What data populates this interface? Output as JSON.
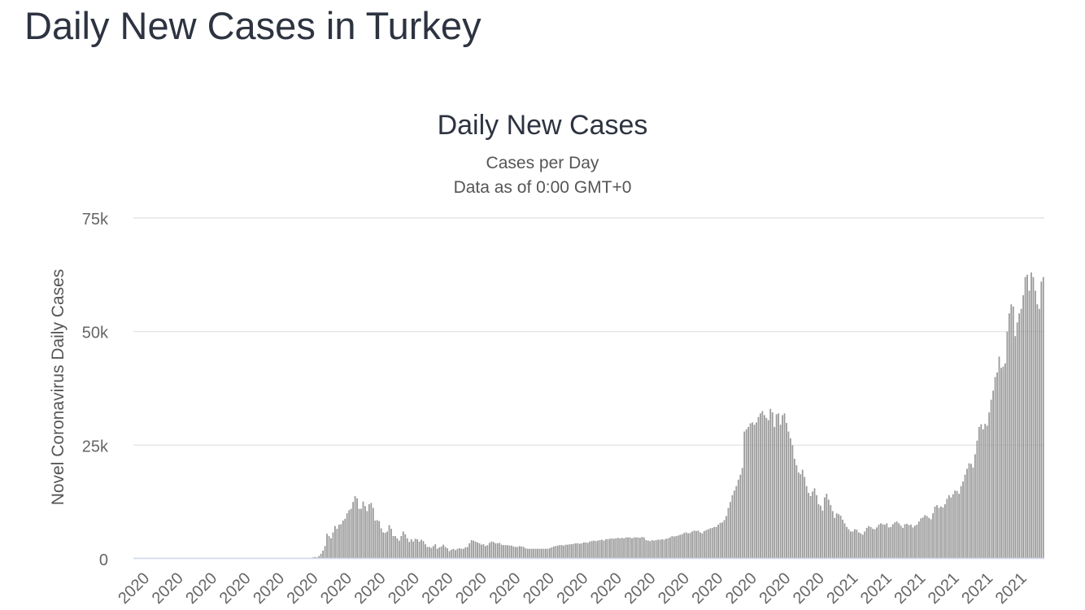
{
  "page": {
    "title": "Daily New Cases in Turkey"
  },
  "chart_data": {
    "type": "bar",
    "title": "Daily New Cases",
    "subtitle": [
      "Cases per Day",
      "Data as of 0:00 GMT+0"
    ],
    "xlabel": "",
    "ylabel": "Novel Coronavirus Daily Cases",
    "ylim": [
      0,
      75000
    ],
    "yticks": [
      {
        "value": 0,
        "label": "0"
      },
      {
        "value": 25000,
        "label": "25k"
      },
      {
        "value": 50000,
        "label": "50k"
      },
      {
        "value": 75000,
        "label": "75k"
      }
    ],
    "xtick_labels": [
      "2020",
      "2020",
      "2020",
      "2020",
      "2020",
      "2020",
      "2020",
      "2020",
      "2020",
      "2020",
      "2020",
      "2020",
      "2020",
      "2020",
      "2020",
      "2020",
      "2020",
      "2020",
      "2020",
      "2020",
      "2020",
      "2021",
      "2021",
      "2021",
      "2021",
      "2021",
      "2021"
    ],
    "grid": true,
    "legend": "none",
    "bar_color": "#999999",
    "values": [
      0,
      0,
      0,
      0,
      0,
      0,
      0,
      0,
      0,
      0,
      0,
      0,
      0,
      0,
      0,
      0,
      0,
      0,
      0,
      0,
      0,
      0,
      0,
      0,
      0,
      0,
      0,
      0,
      0,
      0,
      0,
      0,
      0,
      0,
      0,
      0,
      0,
      0,
      0,
      0,
      0,
      0,
      0,
      0,
      0,
      0,
      0,
      0,
      0,
      0,
      0,
      0,
      0,
      0,
      0,
      0,
      0,
      0,
      0,
      0,
      0,
      0,
      0,
      0,
      0,
      0,
      0,
      0,
      0,
      0,
      0,
      0,
      0,
      0,
      0,
      0,
      0,
      0,
      0,
      0,
      0,
      0,
      0,
      0,
      0,
      0,
      0,
      0,
      100,
      300,
      400,
      300,
      600,
      1100,
      1800,
      2800,
      5500,
      5000,
      4500,
      5800,
      7200,
      6600,
      7500,
      7600,
      8400,
      8800,
      10000,
      10700,
      11000,
      12500,
      13800,
      13300,
      11000,
      11000,
      12600,
      11600,
      10500,
      12000,
      12300,
      11200,
      8400,
      8500,
      8300,
      6700,
      5800,
      5700,
      6000,
      7400,
      6600,
      5000,
      5000,
      4500,
      4000,
      5000,
      6000,
      5400,
      4500,
      3700,
      4300,
      3800,
      4400,
      4300,
      3800,
      4200,
      3900,
      3200,
      2600,
      2600,
      2400,
      2800,
      3200,
      2200,
      2500,
      2700,
      3100,
      2600,
      2300,
      1700,
      2000,
      2200,
      1900,
      2200,
      2300,
      2200,
      2200,
      2500,
      2600,
      3400,
      4100,
      4000,
      3800,
      3600,
      3400,
      3100,
      3200,
      2800,
      3000,
      3500,
      3800,
      3700,
      3400,
      3400,
      3500,
      3100,
      3000,
      3000,
      3000,
      2900,
      2900,
      2700,
      2600,
      2600,
      2800,
      2700,
      2600,
      2300,
      2200,
      2200,
      2200,
      2200,
      2200,
      2200,
      2200,
      2200,
      2200,
      2200,
      2200,
      2300,
      2500,
      2700,
      2800,
      2900,
      3000,
      3000,
      2900,
      3100,
      3100,
      3200,
      3200,
      3300,
      3400,
      3400,
      3300,
      3400,
      3600,
      3600,
      3500,
      3800,
      3900,
      4000,
      3900,
      4000,
      4100,
      4200,
      4000,
      4300,
      4300,
      4400,
      4500,
      4400,
      4500,
      4600,
      4500,
      4600,
      4500,
      4700,
      4700,
      4700,
      4500,
      4700,
      4700,
      4700,
      4600,
      4800,
      4700,
      4100,
      4000,
      3900,
      4100,
      4000,
      4100,
      4200,
      4200,
      4300,
      4200,
      4400,
      4500,
      4700,
      5000,
      4900,
      5000,
      5100,
      5300,
      5400,
      5700,
      5800,
      5600,
      5700,
      6000,
      6200,
      6100,
      6200,
      5800,
      5600,
      6100,
      6300,
      6500,
      6700,
      6800,
      7000,
      7000,
      7500,
      7900,
      8000,
      8500,
      9400,
      11200,
      12500,
      14000,
      15000,
      16000,
      17400,
      18500,
      20000,
      28000,
      28500,
      29000,
      29800,
      30000,
      29500,
      30000,
      31200,
      32000,
      32500,
      31600,
      31000,
      30500,
      33000,
      32200,
      29000,
      31800,
      32000,
      29500,
      31600,
      32000,
      29900,
      28000,
      26500,
      25000,
      22000,
      20600,
      19000,
      18600,
      19600,
      18000,
      16000,
      14500,
      13800,
      14800,
      15500,
      14000,
      12000,
      11700,
      10600,
      13500,
      14300,
      13000,
      11800,
      10500,
      9000,
      10000,
      9800,
      9500,
      8600,
      7800,
      7000,
      6500,
      6000,
      6000,
      6500,
      6400,
      5800,
      5600,
      5300,
      6000,
      6800,
      7200,
      7000,
      6600,
      6500,
      6900,
      7500,
      7800,
      7600,
      7500,
      7800,
      6900,
      7000,
      7600,
      8000,
      8200,
      7800,
      7300,
      6800,
      7600,
      7700,
      7400,
      7500,
      6900,
      7300,
      7500,
      8200,
      8900,
      9100,
      9600,
      9400,
      9000,
      8700,
      10000,
      11500,
      11800,
      11200,
      11500,
      11300,
      12000,
      13200,
      14000,
      13500,
      14200,
      15000,
      14900,
      14300,
      16000,
      17000,
      18500,
      19800,
      21000,
      20900,
      20100,
      23000,
      26000,
      29000,
      29600,
      28500,
      29700,
      29300,
      32200,
      35000,
      37000,
      40000,
      41000,
      44500,
      42000,
      42300,
      43000,
      50000,
      54000,
      56000,
      55500,
      49000,
      52000,
      54000,
      55000,
      58000,
      62000,
      62500,
      59000,
      63000,
      62000,
      59000,
      56000,
      55000,
      61000,
      62000
    ]
  }
}
